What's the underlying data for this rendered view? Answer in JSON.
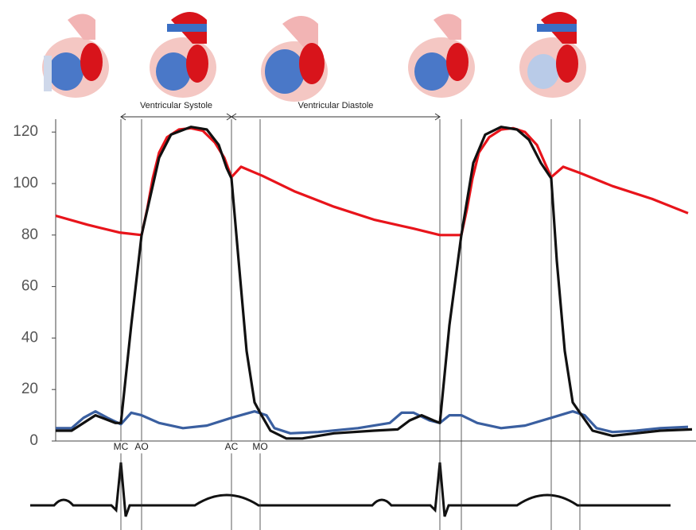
{
  "chart_data": {
    "type": "line",
    "xlim": [
      0,
      805
    ],
    "ylim": [
      0,
      125
    ],
    "yticks": [
      0,
      20,
      40,
      60,
      80,
      100,
      120
    ],
    "markers": [
      {
        "x": 82,
        "label": "MC"
      },
      {
        "x": 108,
        "label": "AO"
      },
      {
        "x": 221,
        "label": "AC"
      },
      {
        "x": 257,
        "label": "MO"
      },
      {
        "x": 483
      },
      {
        "x": 510
      },
      {
        "x": 623
      },
      {
        "x": 659
      }
    ],
    "spans": [
      {
        "label": "Ventricular Systole",
        "from": 82,
        "to": 221
      },
      {
        "label": "Ventricular Diastole",
        "from": 221,
        "to": 483
      }
    ],
    "series": [
      {
        "color": "#e8141b",
        "x": [
          0,
          40,
          80,
          108,
          115,
          122,
          130,
          140,
          155,
          170,
          185,
          200,
          212,
          221,
          233,
          260,
          300,
          350,
          400,
          450,
          483,
          510,
          517,
          524,
          532,
          545,
          560,
          575,
          590,
          605,
          615,
          623,
          638,
          660,
          700,
          750,
          795
        ],
        "values": [
          87.5,
          84,
          81,
          80,
          90,
          102,
          112,
          118,
          121,
          121.5,
          120.5,
          116,
          110,
          102.5,
          106.5,
          103,
          97,
          91,
          86,
          82.5,
          80,
          80,
          90,
          102,
          112,
          118,
          121,
          121.5,
          120,
          115,
          108,
          102.5,
          106.5,
          104,
          99,
          94,
          88.5
        ]
      },
      {
        "color": "#3a5fa0",
        "x": [
          0,
          20,
          35,
          50,
          65,
          82,
          95,
          108,
          130,
          160,
          190,
          221,
          250,
          265,
          275,
          295,
          330,
          380,
          420,
          435,
          450,
          470,
          483,
          495,
          510,
          530,
          560,
          590,
          623,
          650,
          665,
          680,
          700,
          730,
          760,
          795
        ],
        "values": [
          5,
          5,
          9,
          11.5,
          9,
          6.5,
          11,
          10,
          7,
          5,
          6,
          9,
          11.5,
          10,
          5,
          3,
          3.5,
          5,
          7,
          11,
          11,
          8,
          7,
          10,
          10,
          7,
          5,
          6,
          9,
          11.5,
          10,
          5,
          3.5,
          4,
          5,
          5.5
        ]
      },
      {
        "color": "#111111",
        "x": [
          0,
          20,
          50,
          75,
          82,
          95,
          108,
          130,
          145,
          170,
          190,
          205,
          215,
          221,
          230,
          240,
          250,
          257,
          270,
          290,
          310,
          350,
          400,
          430,
          445,
          460,
          475,
          483,
          495,
          510,
          525,
          540,
          560,
          580,
          595,
          610,
          623,
          630,
          640,
          650,
          659,
          675,
          700,
          730,
          760,
          800
        ],
        "values": [
          4,
          4,
          10,
          7,
          7,
          45,
          80,
          110,
          119,
          122,
          121,
          115,
          106,
          102,
          70,
          35,
          15,
          11,
          4,
          1,
          1,
          3,
          4,
          4.5,
          8,
          10,
          8,
          7,
          45,
          80,
          108,
          119,
          122,
          121,
          117,
          108,
          102,
          70,
          35,
          15,
          11,
          4,
          2,
          3,
          4,
          4.5
        ]
      }
    ]
  }
}
